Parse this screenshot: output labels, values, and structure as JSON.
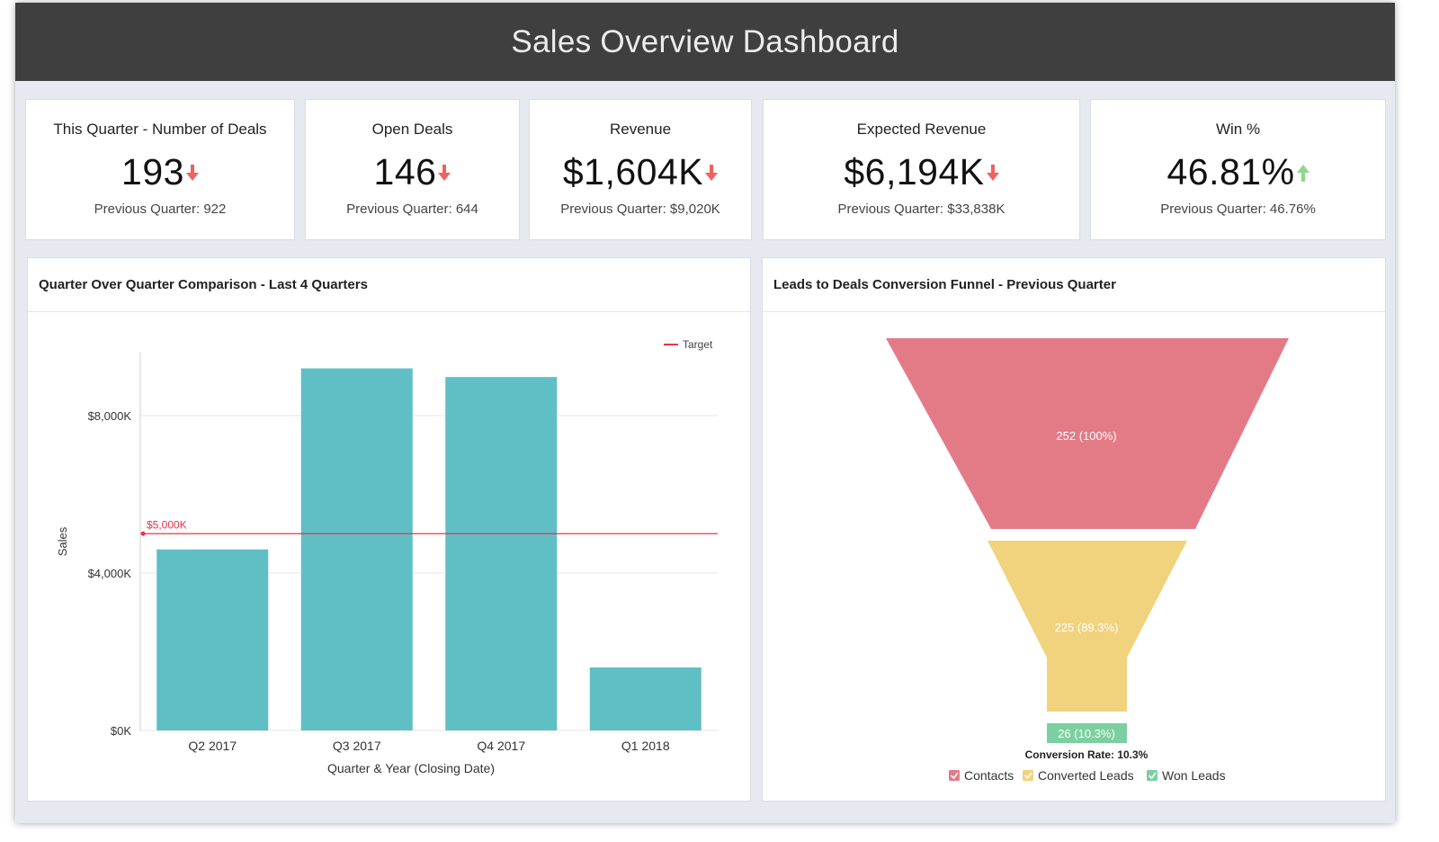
{
  "header": {
    "title": "Sales Overview Dashboard"
  },
  "kpis": [
    {
      "label": "This Quarter - Number of Deals",
      "value": "193",
      "trend": "down",
      "previous": "Previous Quarter: 922"
    },
    {
      "label": "Open Deals",
      "value": "146",
      "trend": "down",
      "previous": "Previous Quarter: 644"
    },
    {
      "label": "Revenue",
      "value": "$1,604K",
      "trend": "down",
      "previous": "Previous Quarter: $9,020K"
    },
    {
      "label": "Expected Revenue",
      "value": "$6,194K",
      "trend": "down",
      "previous": "Previous Quarter: $33,838K"
    },
    {
      "label": "Win %",
      "value": "46.81%",
      "trend": "up",
      "previous": "Previous Quarter: 46.76%"
    }
  ],
  "colors": {
    "down": "#f26060",
    "up": "#8fd68f",
    "bar": "#5fbfc4",
    "target": "#e8344a",
    "contacts": "#e37b87",
    "converted": "#f1d27d",
    "won": "#7ccf9f"
  },
  "bar_panel": {
    "title": "Quarter Over Quarter Comparison - Last 4 Quarters"
  },
  "funnel_panel": {
    "title": "Leads to Deals Conversion Funnel - Previous Quarter",
    "conversion_rate": "Conversion Rate: 10.3%"
  },
  "chart_data": [
    {
      "type": "bar",
      "categories": [
        "Q2 2017",
        "Q3 2017",
        "Q4 2017",
        "Q1 2018"
      ],
      "values": [
        4600,
        9200,
        8980,
        1600
      ],
      "xlabel": "Quarter & Year (Closing Date)",
      "ylabel": "Sales",
      "ylim": [
        0,
        9600
      ],
      "yticks": [
        0,
        4000,
        8000
      ],
      "ytick_labels": [
        "$0K",
        "$4,000K",
        "$8,000K"
      ],
      "target": {
        "value": 5000,
        "label": "$5,000K",
        "legend": "Target"
      },
      "grid": true,
      "legend_position": "top-right"
    },
    {
      "type": "funnel",
      "stages": [
        {
          "name": "Contacts",
          "value": 252,
          "label": "252 (100%)"
        },
        {
          "name": "Converted Leads",
          "value": 225,
          "label": "225 (89.3%)"
        },
        {
          "name": "Won Leads",
          "value": 26,
          "label": "26 (10.3%)"
        }
      ],
      "legend_position": "bottom"
    }
  ]
}
